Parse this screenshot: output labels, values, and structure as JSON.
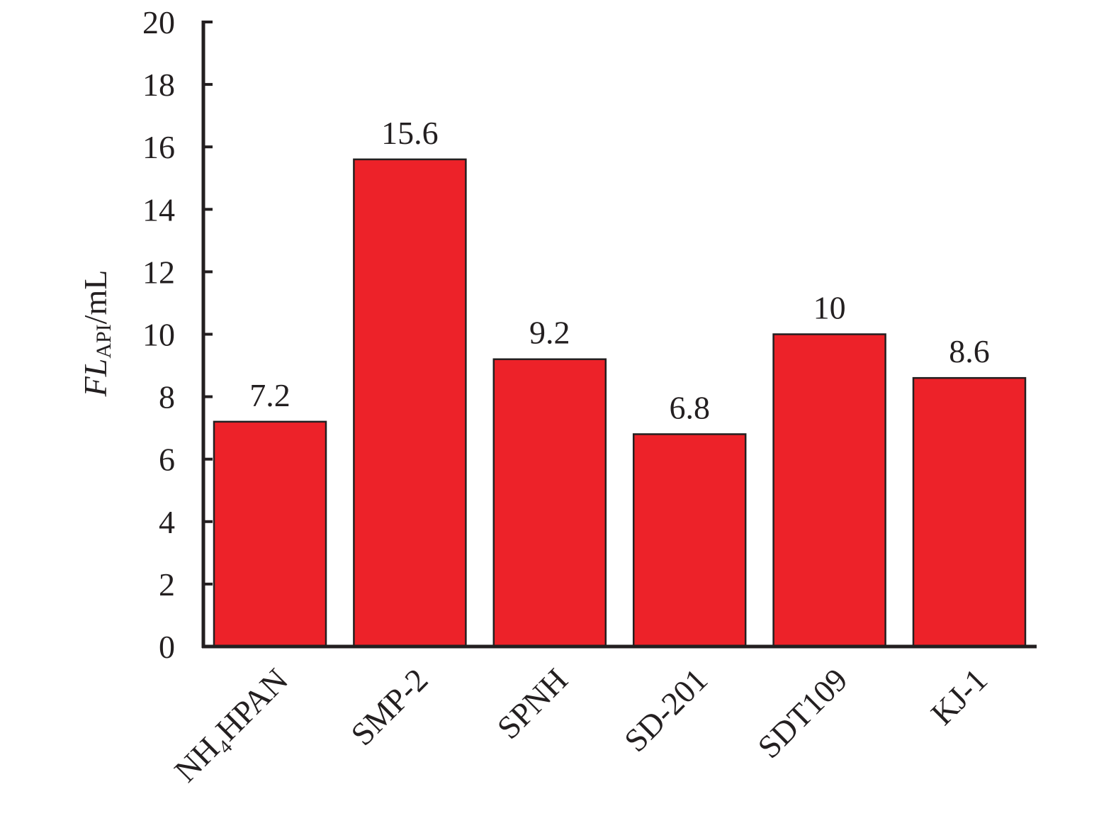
{
  "chart_data": {
    "type": "bar",
    "ylabel": [
      "FL",
      "API",
      "/mL"
    ],
    "categories": [
      "NH₄HPAN",
      "SMP-2",
      "SPNH",
      "SD-201",
      "SDT109",
      "KJ-1"
    ],
    "values": [
      7.2,
      15.6,
      9.2,
      6.8,
      10,
      8.6
    ],
    "color": "#ed2229",
    "ylim": [
      0,
      20
    ],
    "yticks": [
      0,
      2,
      4,
      6,
      8,
      10,
      12,
      14,
      16,
      18,
      20
    ],
    "grid": false
  }
}
